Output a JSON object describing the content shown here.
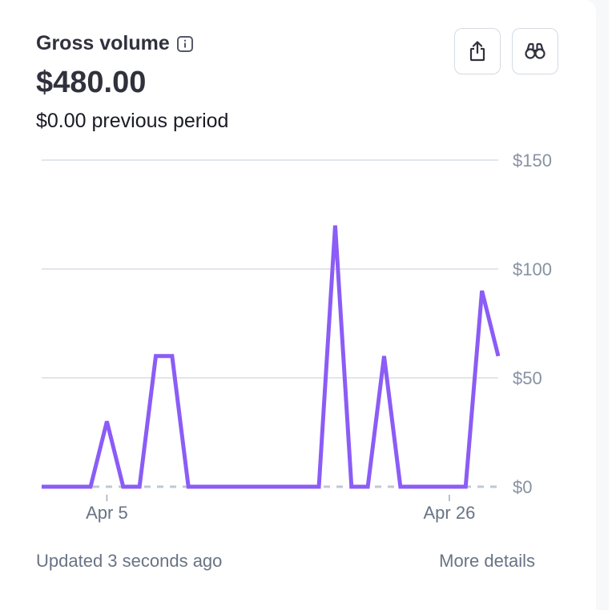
{
  "header": {
    "title": "Gross volume",
    "info_icon": "info-icon",
    "amount": "$480.00",
    "previous": "$0.00 previous period",
    "buttons": [
      {
        "name": "export-button",
        "icon": "share-export-icon"
      },
      {
        "name": "explore-button",
        "icon": "binoculars-icon"
      }
    ]
  },
  "chart_data": {
    "type": "line",
    "title": "Gross volume",
    "xlabel": "",
    "ylabel": "",
    "x_tick_labels": [
      "Apr 5",
      "Apr 26"
    ],
    "x_tick_days": [
      5,
      26
    ],
    "y_ticks": [
      "$0",
      "$50",
      "$100",
      "$150"
    ],
    "ylim": [
      0,
      150
    ],
    "grid": true,
    "legend": "none",
    "series": [
      {
        "color": "#8b5cf6",
        "x": [
          1,
          2,
          3,
          4,
          5,
          6,
          7,
          8,
          9,
          10,
          11,
          12,
          13,
          14,
          15,
          16,
          17,
          18,
          19,
          20,
          21,
          22,
          23,
          24,
          25,
          26,
          27,
          28,
          29
        ],
        "y": [
          0,
          0,
          0,
          0,
          30,
          0,
          0,
          60,
          60,
          0,
          0,
          0,
          0,
          0,
          0,
          0,
          0,
          0,
          120,
          0,
          0,
          60,
          0,
          0,
          0,
          0,
          0,
          90,
          60
        ]
      },
      {
        "style": "dashed",
        "color": "#c0c8d2",
        "x": [
          1,
          29
        ],
        "y": [
          0,
          0
        ]
      }
    ]
  },
  "footer": {
    "updated": "Updated 3 seconds ago",
    "more": "More details"
  },
  "colors": {
    "accent": "#8b5cf6",
    "grid": "#d8dee4",
    "muted_text": "#8792a2"
  }
}
